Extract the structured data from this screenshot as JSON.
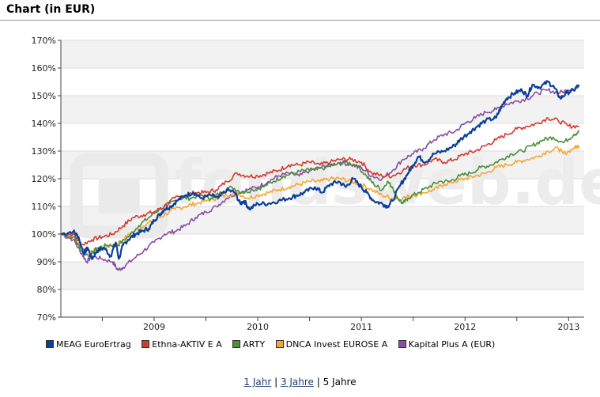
{
  "header": {
    "title": "Chart (in EUR)"
  },
  "periods": {
    "one_year": "1 Jahr",
    "sep1": " | ",
    "three_years": "3 Jahre",
    "sep2": " | ",
    "five_years": "5 Jahre"
  },
  "watermark": {
    "text": "fondsweb.de"
  },
  "chart_data": {
    "type": "line",
    "title": "Chart (in EUR)",
    "x_tick_labels": [
      "2009",
      "2010",
      "2011",
      "2012",
      "2013"
    ],
    "x_tick_years": [
      2009,
      2010,
      2011,
      2012,
      2013
    ],
    "xlim": [
      2008.6,
      2013.65
    ],
    "y_tick_labels": [
      "70%",
      "80%",
      "90%",
      "100%",
      "110%",
      "120%",
      "130%",
      "140%",
      "150%",
      "160%",
      "170%"
    ],
    "ylim": [
      70,
      170
    ],
    "grid": "horizontal, alternating shaded bands",
    "legend_position": "bottom",
    "series": [
      {
        "name": "MEAG EuroErtrag",
        "color": "#0b3f99",
        "width": 2.2,
        "points": [
          [
            2008.6,
            100
          ],
          [
            2008.72,
            101
          ],
          [
            2008.77,
            99
          ],
          [
            2008.82,
            93
          ],
          [
            2008.86,
            95
          ],
          [
            2008.9,
            91
          ],
          [
            2008.95,
            94
          ],
          [
            2009.02,
            95
          ],
          [
            2009.08,
            92
          ],
          [
            2009.13,
            97
          ],
          [
            2009.16,
            91
          ],
          [
            2009.2,
            96
          ],
          [
            2009.25,
            98
          ],
          [
            2009.32,
            100
          ],
          [
            2009.38,
            101
          ],
          [
            2009.45,
            102
          ],
          [
            2009.5,
            105
          ],
          [
            2009.55,
            107
          ],
          [
            2009.6,
            109
          ],
          [
            2009.66,
            110
          ],
          [
            2009.72,
            112
          ],
          [
            2009.8,
            114
          ],
          [
            2009.88,
            115
          ],
          [
            2009.95,
            113
          ],
          [
            2010.05,
            114
          ],
          [
            2010.12,
            113
          ],
          [
            2010.2,
            116
          ],
          [
            2010.28,
            115
          ],
          [
            2010.33,
            111
          ],
          [
            2010.37,
            112
          ],
          [
            2010.42,
            109
          ],
          [
            2010.5,
            111
          ],
          [
            2010.6,
            111
          ],
          [
            2010.7,
            112
          ],
          [
            2010.8,
            113
          ],
          [
            2010.88,
            114
          ],
          [
            2010.95,
            115
          ],
          [
            2011.05,
            117
          ],
          [
            2011.12,
            115
          ],
          [
            2011.2,
            118
          ],
          [
            2011.28,
            119
          ],
          [
            2011.35,
            117
          ],
          [
            2011.42,
            120
          ],
          [
            2011.5,
            117
          ],
          [
            2011.55,
            115
          ],
          [
            2011.62,
            112
          ],
          [
            2011.7,
            111
          ],
          [
            2011.75,
            110
          ],
          [
            2011.8,
            112
          ],
          [
            2011.88,
            118
          ],
          [
            2011.95,
            122
          ],
          [
            2012.0,
            125
          ],
          [
            2012.05,
            128
          ],
          [
            2012.12,
            126
          ],
          [
            2012.2,
            129
          ],
          [
            2012.3,
            130
          ],
          [
            2012.4,
            132
          ],
          [
            2012.45,
            134
          ],
          [
            2012.55,
            137
          ],
          [
            2012.62,
            139
          ],
          [
            2012.7,
            141
          ],
          [
            2012.8,
            142
          ],
          [
            2012.85,
            146
          ],
          [
            2012.9,
            149
          ],
          [
            2012.98,
            151
          ],
          [
            2013.05,
            152
          ],
          [
            2013.1,
            150
          ],
          [
            2013.15,
            154
          ],
          [
            2013.22,
            153
          ],
          [
            2013.3,
            155
          ],
          [
            2013.36,
            153
          ],
          [
            2013.42,
            149
          ],
          [
            2013.48,
            151
          ],
          [
            2013.55,
            152
          ],
          [
            2013.6,
            154
          ]
        ]
      },
      {
        "name": "Ethna-AKTIV E A",
        "color": "#d33a2f",
        "width": 1.6,
        "points": [
          [
            2008.6,
            100
          ],
          [
            2008.72,
            100
          ],
          [
            2008.8,
            96
          ],
          [
            2008.9,
            98
          ],
          [
            2009.0,
            99
          ],
          [
            2009.1,
            100
          ],
          [
            2009.2,
            103
          ],
          [
            2009.3,
            106
          ],
          [
            2009.4,
            107
          ],
          [
            2009.5,
            108
          ],
          [
            2009.6,
            110
          ],
          [
            2009.7,
            113
          ],
          [
            2009.8,
            114
          ],
          [
            2009.9,
            115
          ],
          [
            2010.0,
            115
          ],
          [
            2010.1,
            116
          ],
          [
            2010.2,
            119
          ],
          [
            2010.3,
            122
          ],
          [
            2010.4,
            121
          ],
          [
            2010.5,
            121
          ],
          [
            2010.6,
            122
          ],
          [
            2010.7,
            123
          ],
          [
            2010.8,
            125
          ],
          [
            2010.9,
            125
          ],
          [
            2011.0,
            126
          ],
          [
            2011.1,
            125
          ],
          [
            2011.2,
            126
          ],
          [
            2011.3,
            127
          ],
          [
            2011.4,
            127
          ],
          [
            2011.5,
            126
          ],
          [
            2011.6,
            122
          ],
          [
            2011.7,
            121
          ],
          [
            2011.8,
            121
          ],
          [
            2011.9,
            123
          ],
          [
            2012.0,
            125
          ],
          [
            2012.1,
            125
          ],
          [
            2012.2,
            127
          ],
          [
            2012.3,
            126
          ],
          [
            2012.4,
            127
          ],
          [
            2012.5,
            129
          ],
          [
            2012.6,
            130
          ],
          [
            2012.7,
            132
          ],
          [
            2012.8,
            134
          ],
          [
            2012.9,
            136
          ],
          [
            2013.0,
            138
          ],
          [
            2013.1,
            139
          ],
          [
            2013.2,
            140
          ],
          [
            2013.3,
            142
          ],
          [
            2013.4,
            141
          ],
          [
            2013.5,
            139
          ],
          [
            2013.6,
            139
          ]
        ]
      },
      {
        "name": "ARTY",
        "color": "#4a8f3c",
        "width": 1.6,
        "points": [
          [
            2008.6,
            100
          ],
          [
            2008.72,
            99
          ],
          [
            2008.8,
            94
          ],
          [
            2008.88,
            92
          ],
          [
            2008.95,
            95
          ],
          [
            2009.05,
            96
          ],
          [
            2009.15,
            96
          ],
          [
            2009.25,
            99
          ],
          [
            2009.35,
            103
          ],
          [
            2009.45,
            106
          ],
          [
            2009.55,
            109
          ],
          [
            2009.65,
            111
          ],
          [
            2009.75,
            113
          ],
          [
            2009.85,
            113
          ],
          [
            2009.95,
            114
          ],
          [
            2010.05,
            113
          ],
          [
            2010.15,
            115
          ],
          [
            2010.25,
            117
          ],
          [
            2010.35,
            115
          ],
          [
            2010.45,
            116
          ],
          [
            2010.55,
            117
          ],
          [
            2010.65,
            119
          ],
          [
            2010.75,
            121
          ],
          [
            2010.85,
            122
          ],
          [
            2010.95,
            123
          ],
          [
            2011.05,
            123
          ],
          [
            2011.15,
            124
          ],
          [
            2011.25,
            125
          ],
          [
            2011.35,
            126
          ],
          [
            2011.45,
            125
          ],
          [
            2011.55,
            121
          ],
          [
            2011.62,
            118
          ],
          [
            2011.7,
            116
          ],
          [
            2011.75,
            119
          ],
          [
            2011.8,
            117
          ],
          [
            2011.85,
            113
          ],
          [
            2011.9,
            111
          ],
          [
            2011.95,
            113
          ],
          [
            2012.05,
            115
          ],
          [
            2012.15,
            117
          ],
          [
            2012.25,
            119
          ],
          [
            2012.35,
            119
          ],
          [
            2012.45,
            121
          ],
          [
            2012.55,
            122
          ],
          [
            2012.65,
            124
          ],
          [
            2012.75,
            125
          ],
          [
            2012.85,
            127
          ],
          [
            2012.95,
            129
          ],
          [
            2013.05,
            130
          ],
          [
            2013.15,
            132
          ],
          [
            2013.25,
            134
          ],
          [
            2013.35,
            135
          ],
          [
            2013.45,
            133
          ],
          [
            2013.55,
            136
          ],
          [
            2013.6,
            137
          ]
        ]
      },
      {
        "name": "DNCA Invest EUROSE A",
        "color": "#f5a733",
        "width": 1.6,
        "points": [
          [
            2008.6,
            100
          ],
          [
            2008.72,
            99
          ],
          [
            2008.8,
            95
          ],
          [
            2008.9,
            94
          ],
          [
            2009.0,
            95
          ],
          [
            2009.1,
            96
          ],
          [
            2009.2,
            98
          ],
          [
            2009.3,
            101
          ],
          [
            2009.4,
            103
          ],
          [
            2009.5,
            105
          ],
          [
            2009.6,
            107
          ],
          [
            2009.7,
            109
          ],
          [
            2009.8,
            110
          ],
          [
            2009.9,
            111
          ],
          [
            2010.0,
            112
          ],
          [
            2010.1,
            113
          ],
          [
            2010.2,
            114
          ],
          [
            2010.3,
            115
          ],
          [
            2010.4,
            113
          ],
          [
            2010.5,
            114
          ],
          [
            2010.6,
            115
          ],
          [
            2010.7,
            116
          ],
          [
            2010.8,
            117
          ],
          [
            2010.9,
            118
          ],
          [
            2011.0,
            119
          ],
          [
            2011.1,
            119
          ],
          [
            2011.2,
            120
          ],
          [
            2011.3,
            120
          ],
          [
            2011.4,
            119
          ],
          [
            2011.5,
            118
          ],
          [
            2011.6,
            116
          ],
          [
            2011.7,
            114
          ],
          [
            2011.8,
            113
          ],
          [
            2011.9,
            113
          ],
          [
            2012.0,
            114
          ],
          [
            2012.1,
            115
          ],
          [
            2012.2,
            116
          ],
          [
            2012.3,
            118
          ],
          [
            2012.4,
            119
          ],
          [
            2012.5,
            120
          ],
          [
            2012.6,
            121
          ],
          [
            2012.7,
            122
          ],
          [
            2012.8,
            124
          ],
          [
            2012.9,
            125
          ],
          [
            2013.0,
            126
          ],
          [
            2013.1,
            127
          ],
          [
            2013.2,
            128
          ],
          [
            2013.3,
            130
          ],
          [
            2013.4,
            131
          ],
          [
            2013.45,
            129
          ],
          [
            2013.55,
            131
          ],
          [
            2013.6,
            132
          ]
        ]
      },
      {
        "name": "Kapital Plus A (EUR)",
        "color": "#8a4ca3",
        "width": 1.6,
        "points": [
          [
            2008.6,
            100
          ],
          [
            2008.72,
            98
          ],
          [
            2008.8,
            93
          ],
          [
            2008.85,
            90
          ],
          [
            2008.9,
            92
          ],
          [
            2009.0,
            91
          ],
          [
            2009.1,
            90
          ],
          [
            2009.15,
            87
          ],
          [
            2009.2,
            88
          ],
          [
            2009.3,
            91
          ],
          [
            2009.4,
            94
          ],
          [
            2009.5,
            97
          ],
          [
            2009.6,
            100
          ],
          [
            2009.7,
            101
          ],
          [
            2009.8,
            103
          ],
          [
            2009.9,
            106
          ],
          [
            2010.0,
            108
          ],
          [
            2010.1,
            110
          ],
          [
            2010.2,
            113
          ],
          [
            2010.3,
            115
          ],
          [
            2010.4,
            116
          ],
          [
            2010.5,
            117
          ],
          [
            2010.6,
            119
          ],
          [
            2010.7,
            121
          ],
          [
            2010.8,
            122
          ],
          [
            2010.9,
            121
          ],
          [
            2011.0,
            123
          ],
          [
            2011.1,
            124
          ],
          [
            2011.2,
            125
          ],
          [
            2011.3,
            126
          ],
          [
            2011.4,
            125
          ],
          [
            2011.5,
            124
          ],
          [
            2011.6,
            121
          ],
          [
            2011.7,
            120
          ],
          [
            2011.8,
            123
          ],
          [
            2011.9,
            127
          ],
          [
            2012.0,
            129
          ],
          [
            2012.1,
            131
          ],
          [
            2012.2,
            134
          ],
          [
            2012.3,
            136
          ],
          [
            2012.4,
            137
          ],
          [
            2012.5,
            140
          ],
          [
            2012.6,
            142
          ],
          [
            2012.7,
            144
          ],
          [
            2012.8,
            145
          ],
          [
            2012.9,
            147
          ],
          [
            2013.0,
            148
          ],
          [
            2013.1,
            149
          ],
          [
            2013.2,
            151
          ],
          [
            2013.3,
            152
          ],
          [
            2013.4,
            151
          ],
          [
            2013.5,
            152
          ],
          [
            2013.6,
            153
          ]
        ]
      }
    ]
  }
}
